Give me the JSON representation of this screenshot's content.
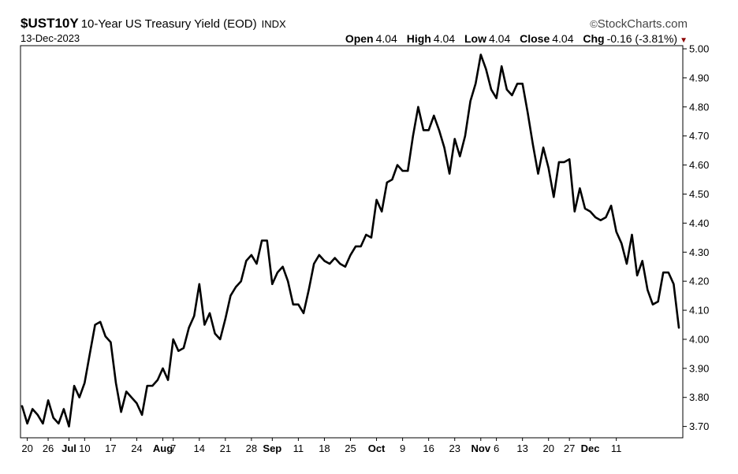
{
  "header": {
    "symbol": "$UST10Y",
    "name": "10-Year US Treasury Yield (EOD)",
    "exchange": "INDX",
    "brand": "StockCharts.com",
    "brand_icon": "copyright-icon",
    "date": "13-Dec-2023",
    "quote": {
      "open_label": "Open",
      "open": "4.04",
      "high_label": "High",
      "high": "4.04",
      "low_label": "Low",
      "low": "4.04",
      "close_label": "Close",
      "close": "4.04",
      "chg_label": "Chg",
      "chg": "-0.16 (-3.81%)",
      "chg_icon": "down-triangle-icon",
      "chg_color": "#8b0000"
    }
  },
  "chart_data": {
    "type": "line",
    "title": "$UST10Y 10-Year US Treasury Yield (EOD)",
    "ylim": [
      3.68,
      5.0
    ],
    "y_ticks": [
      "5.00",
      "4.90",
      "4.80",
      "4.70",
      "4.60",
      "4.50",
      "4.40",
      "4.30",
      "4.20",
      "4.10",
      "4.00",
      "3.90",
      "3.80",
      "3.70"
    ],
    "y_axis_position": "right",
    "x_ticks": [
      {
        "label": "20",
        "index": 1,
        "bold": false
      },
      {
        "label": "26",
        "index": 5,
        "bold": false
      },
      {
        "label": "Jul",
        "index": 9,
        "bold": true
      },
      {
        "label": "10",
        "index": 12,
        "bold": false
      },
      {
        "label": "17",
        "index": 17,
        "bold": false
      },
      {
        "label": "24",
        "index": 22,
        "bold": false
      },
      {
        "label": "Aug",
        "index": 27,
        "bold": true
      },
      {
        "label": "7",
        "index": 29,
        "bold": false
      },
      {
        "label": "14",
        "index": 34,
        "bold": false
      },
      {
        "label": "21",
        "index": 39,
        "bold": false
      },
      {
        "label": "28",
        "index": 44,
        "bold": false
      },
      {
        "label": "Sep",
        "index": 48,
        "bold": true
      },
      {
        "label": "11",
        "index": 53,
        "bold": false
      },
      {
        "label": "18",
        "index": 58,
        "bold": false
      },
      {
        "label": "25",
        "index": 63,
        "bold": false
      },
      {
        "label": "Oct",
        "index": 68,
        "bold": true
      },
      {
        "label": "9",
        "index": 73,
        "bold": false
      },
      {
        "label": "16",
        "index": 78,
        "bold": false
      },
      {
        "label": "23",
        "index": 83,
        "bold": false
      },
      {
        "label": "Nov",
        "index": 88,
        "bold": true
      },
      {
        "label": "6",
        "index": 91,
        "bold": false
      },
      {
        "label": "13",
        "index": 96,
        "bold": false
      },
      {
        "label": "20",
        "index": 101,
        "bold": false
      },
      {
        "label": "27",
        "index": 105,
        "bold": false
      },
      {
        "label": "Dec",
        "index": 109,
        "bold": true
      },
      {
        "label": "11",
        "index": 114,
        "bold": false
      }
    ],
    "series": [
      {
        "name": "",
        "line_color": "#000000",
        "values": [
          3.77,
          3.71,
          3.76,
          3.74,
          3.71,
          3.79,
          3.73,
          3.71,
          3.76,
          3.7,
          3.84,
          3.8,
          3.85,
          3.95,
          4.05,
          4.06,
          4.01,
          3.99,
          3.85,
          3.75,
          3.82,
          3.8,
          3.78,
          3.74,
          3.84,
          3.84,
          3.86,
          3.9,
          3.86,
          4.0,
          3.96,
          3.97,
          4.04,
          4.08,
          4.19,
          4.05,
          4.09,
          4.02,
          4.0,
          4.07,
          4.15,
          4.18,
          4.2,
          4.27,
          4.29,
          4.26,
          4.34,
          4.34,
          4.19,
          4.23,
          4.25,
          4.2,
          4.12,
          4.12,
          4.09,
          4.17,
          4.26,
          4.29,
          4.27,
          4.26,
          4.28,
          4.26,
          4.25,
          4.29,
          4.32,
          4.32,
          4.36,
          4.35,
          4.48,
          4.44,
          4.54,
          4.55,
          4.6,
          4.58,
          4.58,
          4.7,
          4.8,
          4.72,
          4.72,
          4.77,
          4.72,
          4.66,
          4.57,
          4.69,
          4.63,
          4.7,
          4.82,
          4.88,
          4.98,
          4.93,
          4.86,
          4.83,
          4.94,
          4.86,
          4.84,
          4.88,
          4.88,
          4.78,
          4.67,
          4.57,
          4.66,
          4.59,
          4.49,
          4.61,
          4.61,
          4.62,
          4.44,
          4.52,
          4.45,
          4.44,
          4.42,
          4.41,
          4.42,
          4.46,
          4.37,
          4.33,
          4.26,
          4.36,
          4.22,
          4.27,
          4.17,
          4.12,
          4.13,
          4.23,
          4.23,
          4.19,
          4.04
        ]
      }
    ]
  }
}
